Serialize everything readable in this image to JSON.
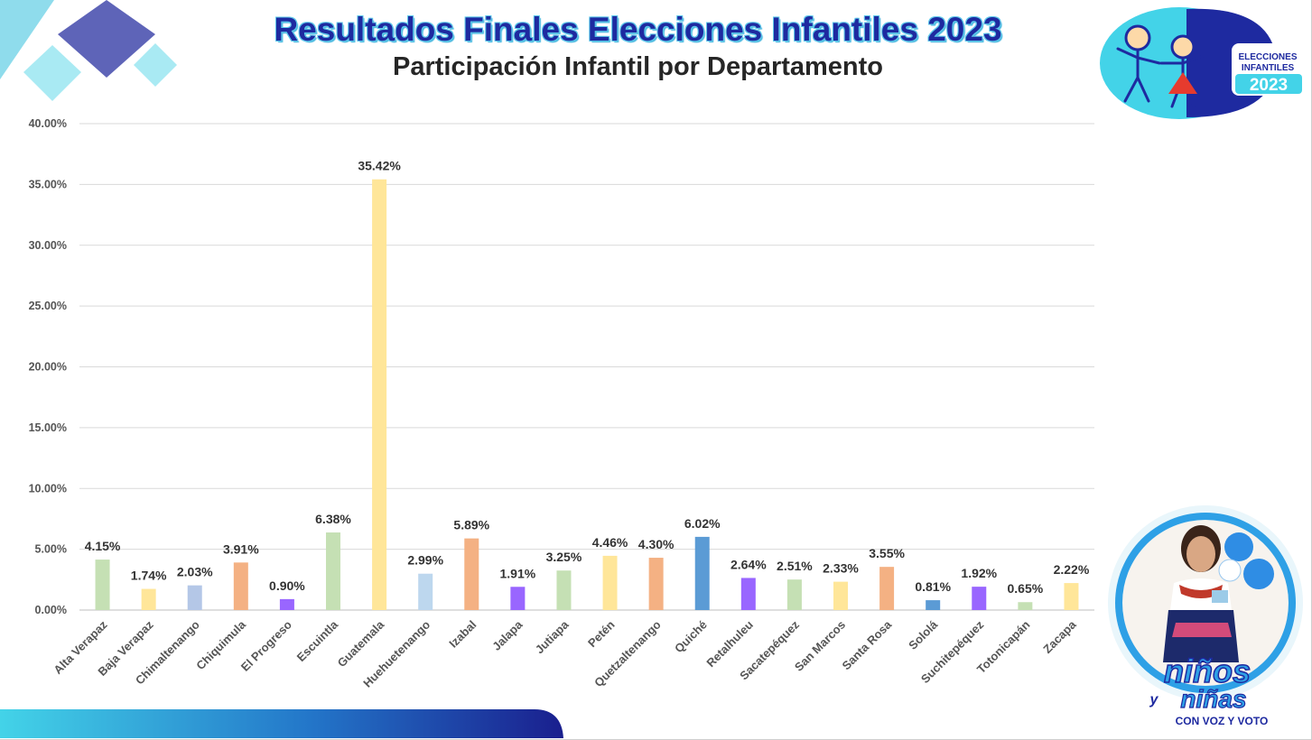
{
  "header": {
    "title": "Resultados Finales Elecciones Infantiles 2023",
    "subtitle": "Participación Infantil por Departamento"
  },
  "logo": {
    "line1": "ELECCIONES",
    "line2": "INFANTILES",
    "year": "2023"
  },
  "badge": {
    "word1": "niños",
    "word2": "niñas",
    "connector": "y",
    "tagline": "CON VOZ Y VOTO"
  },
  "colors": {
    "title": "#1e2aa0",
    "title_glow": "#5ec8ea",
    "accent_blue": "#1e2aa0",
    "accent_cyan": "#43d3e8"
  },
  "chart_data": {
    "type": "bar",
    "title": "Participación Infantil por Departamento",
    "ylim": [
      0,
      40
    ],
    "yticks": [
      "0.00%",
      "5.00%",
      "10.00%",
      "15.00%",
      "20.00%",
      "25.00%",
      "30.00%",
      "35.00%",
      "40.00%"
    ],
    "grid": true,
    "categories": [
      "Alta Verapaz",
      "Baja Verapaz",
      "Chimaltenango",
      "Chiquimula",
      "El Progreso",
      "Escuintla",
      "Guatemala",
      "Huehuetenango",
      "Izabal",
      "Jalapa",
      "Jutiapa",
      "Petén",
      "Quetzaltenango",
      "Quiché",
      "Retalhuleu",
      "Sacatepéquez",
      "San Marcos",
      "Santa Rosa",
      "Sololá",
      "Suchitepéquez",
      "Totonicapán",
      "Zacapa"
    ],
    "values": [
      4.15,
      1.74,
      2.03,
      3.91,
      0.9,
      6.38,
      35.42,
      2.99,
      5.89,
      1.91,
      3.25,
      4.46,
      4.3,
      6.02,
      2.64,
      2.51,
      2.33,
      3.55,
      0.81,
      1.92,
      0.65,
      2.22
    ],
    "labels": [
      "4.15%",
      "1.74%",
      "2.03%",
      "3.91%",
      "0.90%",
      "6.38%",
      "35.42%",
      "2.99%",
      "5.89%",
      "1.91%",
      "3.25%",
      "4.46%",
      "4.30%",
      "6.02%",
      "2.64%",
      "2.51%",
      "2.33%",
      "3.55%",
      "0.81%",
      "1.92%",
      "0.65%",
      "2.22%"
    ],
    "bar_colors": [
      "#c5e0b4",
      "#ffe699",
      "#b4c7e7",
      "#f4b183",
      "#9966ff",
      "#c5e0b4",
      "#ffe699",
      "#bdd7ee",
      "#f4b183",
      "#9966ff",
      "#c5e0b4",
      "#ffe699",
      "#f4b183",
      "#5b9bd5",
      "#9966ff",
      "#c5e0b4",
      "#ffe699",
      "#f4b183",
      "#5b9bd5",
      "#9966ff",
      "#c5e0b4",
      "#ffe699"
    ]
  }
}
